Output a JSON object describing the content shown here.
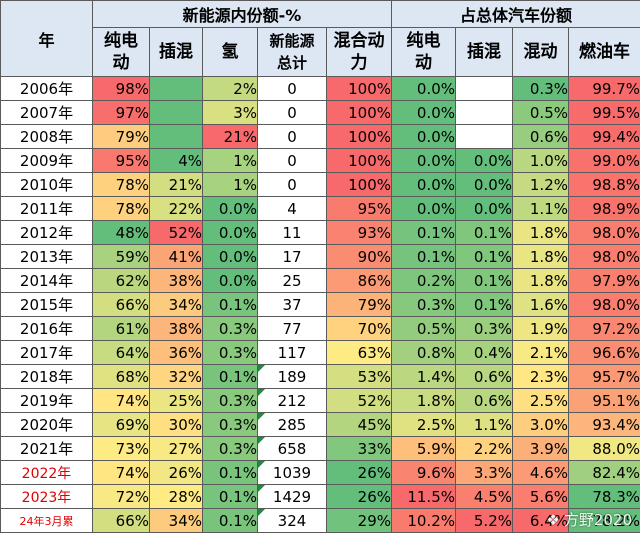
{
  "header": {
    "year_label": "年",
    "group_nev": "新能源内份额-%",
    "group_total": "占总体汽车份额",
    "cols": [
      "纯电动",
      "插混",
      "氢",
      "新能源总计",
      "混合动力",
      "纯电动",
      "插混",
      "混动",
      "燃油车"
    ]
  },
  "colors": {
    "header_bg": "#dde7f3",
    "scale_red": "#f8696b",
    "scale_yellow": "#ffeb84",
    "scale_green": "#63be7b",
    "year_red_text": "#e00000",
    "flag_green": "#1e8c3a"
  },
  "rows": [
    {
      "year": "2006年",
      "ev": "98%",
      "phev": "",
      "h2": "2%",
      "nev_total": "0",
      "hybrid": "100%",
      "t_ev": "0.0%",
      "t_phev": "",
      "t_hybrid": "0.3%",
      "t_fuel": "99.7%"
    },
    {
      "year": "2007年",
      "ev": "97%",
      "phev": "",
      "h2": "3%",
      "nev_total": "0",
      "hybrid": "100%",
      "t_ev": "0.0%",
      "t_phev": "",
      "t_hybrid": "0.5%",
      "t_fuel": "99.5%"
    },
    {
      "year": "2008年",
      "ev": "79%",
      "phev": "",
      "h2": "21%",
      "nev_total": "0",
      "hybrid": "100%",
      "t_ev": "0.0%",
      "t_phev": "",
      "t_hybrid": "0.6%",
      "t_fuel": "99.4%"
    },
    {
      "year": "2009年",
      "ev": "95%",
      "phev": "4%",
      "h2": "1%",
      "nev_total": "0",
      "hybrid": "100%",
      "t_ev": "0.0%",
      "t_phev": "0.0%",
      "t_hybrid": "1.0%",
      "t_fuel": "99.0%"
    },
    {
      "year": "2010年",
      "ev": "78%",
      "phev": "21%",
      "h2": "1%",
      "nev_total": "0",
      "hybrid": "100%",
      "t_ev": "0.0%",
      "t_phev": "0.0%",
      "t_hybrid": "1.2%",
      "t_fuel": "98.8%"
    },
    {
      "year": "2011年",
      "ev": "78%",
      "phev": "22%",
      "h2": "0.0%",
      "nev_total": "4",
      "hybrid": "95%",
      "t_ev": "0.0%",
      "t_phev": "0.0%",
      "t_hybrid": "1.1%",
      "t_fuel": "98.9%"
    },
    {
      "year": "2012年",
      "ev": "48%",
      "phev": "52%",
      "h2": "0.0%",
      "nev_total": "11",
      "hybrid": "93%",
      "t_ev": "0.1%",
      "t_phev": "0.1%",
      "t_hybrid": "1.8%",
      "t_fuel": "98.0%"
    },
    {
      "year": "2013年",
      "ev": "59%",
      "phev": "41%",
      "h2": "0.0%",
      "nev_total": "17",
      "hybrid": "90%",
      "t_ev": "0.1%",
      "t_phev": "0.1%",
      "t_hybrid": "1.8%",
      "t_fuel": "98.0%"
    },
    {
      "year": "2014年",
      "ev": "62%",
      "phev": "38%",
      "h2": "0.0%",
      "nev_total": "25",
      "hybrid": "86%",
      "t_ev": "0.2%",
      "t_phev": "0.1%",
      "t_hybrid": "1.8%",
      "t_fuel": "97.9%"
    },
    {
      "year": "2015年",
      "ev": "66%",
      "phev": "34%",
      "h2": "0.1%",
      "nev_total": "37",
      "hybrid": "79%",
      "t_ev": "0.3%",
      "t_phev": "0.1%",
      "t_hybrid": "1.6%",
      "t_fuel": "98.0%"
    },
    {
      "year": "2016年",
      "ev": "61%",
      "phev": "38%",
      "h2": "0.3%",
      "nev_total": "77",
      "hybrid": "70%",
      "t_ev": "0.5%",
      "t_phev": "0.3%",
      "t_hybrid": "1.9%",
      "t_fuel": "97.2%"
    },
    {
      "year": "2017年",
      "ev": "64%",
      "phev": "36%",
      "h2": "0.3%",
      "nev_total": "117",
      "hybrid": "63%",
      "t_ev": "0.8%",
      "t_phev": "0.4%",
      "t_hybrid": "2.1%",
      "t_fuel": "96.6%"
    },
    {
      "year": "2018年",
      "ev": "68%",
      "phev": "32%",
      "h2": "0.1%",
      "nev_total": "189",
      "hybrid": "53%",
      "t_ev": "1.4%",
      "t_phev": "0.6%",
      "t_hybrid": "2.3%",
      "t_fuel": "95.7%"
    },
    {
      "year": "2019年",
      "ev": "74%",
      "phev": "25%",
      "h2": "0.3%",
      "nev_total": "212",
      "hybrid": "52%",
      "t_ev": "1.8%",
      "t_phev": "0.6%",
      "t_hybrid": "2.5%",
      "t_fuel": "95.1%"
    },
    {
      "year": "2020年",
      "ev": "69%",
      "phev": "30%",
      "h2": "0.3%",
      "nev_total": "285",
      "hybrid": "45%",
      "t_ev": "2.5%",
      "t_phev": "1.1%",
      "t_hybrid": "3.0%",
      "t_fuel": "93.4%"
    },
    {
      "year": "2021年",
      "ev": "73%",
      "phev": "27%",
      "h2": "0.3%",
      "nev_total": "658",
      "hybrid": "33%",
      "t_ev": "5.9%",
      "t_phev": "2.2%",
      "t_hybrid": "3.9%",
      "t_fuel": "88.0%"
    },
    {
      "year": "2022年",
      "ev": "74%",
      "phev": "26%",
      "h2": "0.1%",
      "nev_total": "1039",
      "hybrid": "26%",
      "t_ev": "9.6%",
      "t_phev": "3.3%",
      "t_hybrid": "4.6%",
      "t_fuel": "82.4%",
      "year_style": "red"
    },
    {
      "year": "2023年",
      "ev": "72%",
      "phev": "28%",
      "h2": "0.1%",
      "nev_total": "1429",
      "hybrid": "26%",
      "t_ev": "11.5%",
      "t_phev": "4.5%",
      "t_hybrid": "5.6%",
      "t_fuel": "78.3%",
      "year_style": "red"
    },
    {
      "year": "24年3月累",
      "ev": "66%",
      "phev": "34%",
      "h2": "0.1%",
      "nev_total": "324",
      "hybrid": "29%",
      "t_ev": "10.2%",
      "t_phev": "5.2%",
      "t_hybrid": "6.4%",
      "t_fuel": "78.2%",
      "year_style": "small"
    }
  ],
  "watermark": {
    "text": "方野2020",
    "icon": "logo-icon"
  }
}
